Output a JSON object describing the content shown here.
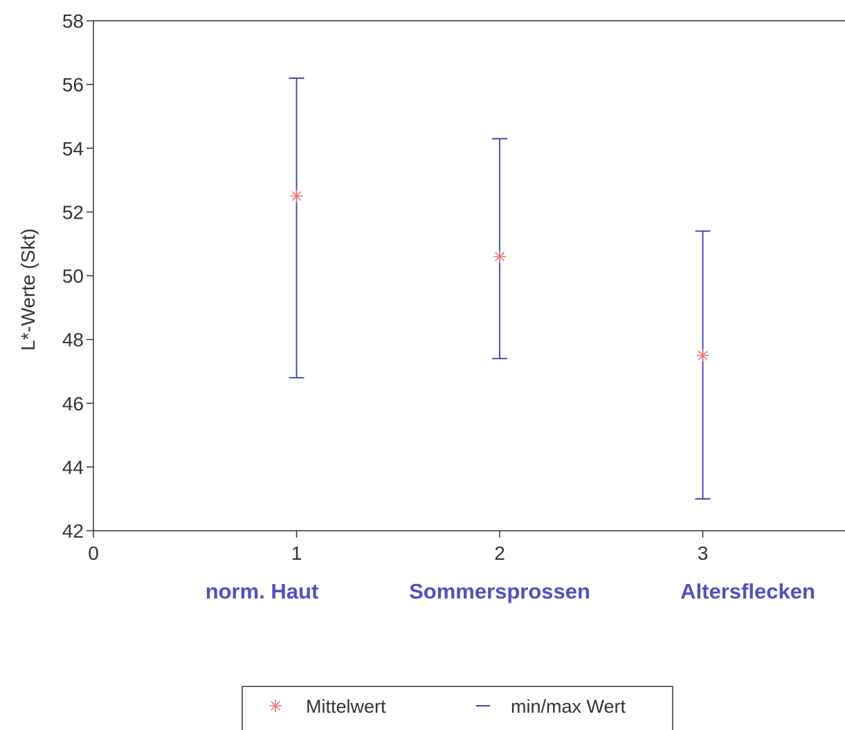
{
  "chart_data": {
    "type": "scatter",
    "title": "",
    "xlabel": "",
    "ylabel": "L*-Werte  (Skt)",
    "xlim": [
      0,
      3.7
    ],
    "ylim": [
      42,
      58
    ],
    "x_ticks": [
      0,
      1,
      2,
      3
    ],
    "y_ticks": [
      42,
      44,
      46,
      48,
      50,
      52,
      54,
      56,
      58
    ],
    "grid": false,
    "categories": [
      "norm. Haut",
      "Sommersprossen",
      "Altersflecken"
    ],
    "series": [
      {
        "name": "Mittelwert",
        "marker": "asterisk",
        "color": "#f07878",
        "x": [
          1,
          2,
          3
        ],
        "values": [
          52.5,
          50.6,
          47.5
        ]
      },
      {
        "name": "min/max Wert",
        "marker": "dash",
        "color": "#3c3cb4",
        "x": [
          1,
          2,
          3
        ],
        "min": [
          46.8,
          47.4,
          43.0
        ],
        "max": [
          56.2,
          54.3,
          51.4
        ]
      }
    ],
    "category_label_color": "#5050c0",
    "legend": {
      "position": "bottom-center",
      "entries": [
        "Mittelwert",
        "min/max Wert"
      ]
    }
  }
}
